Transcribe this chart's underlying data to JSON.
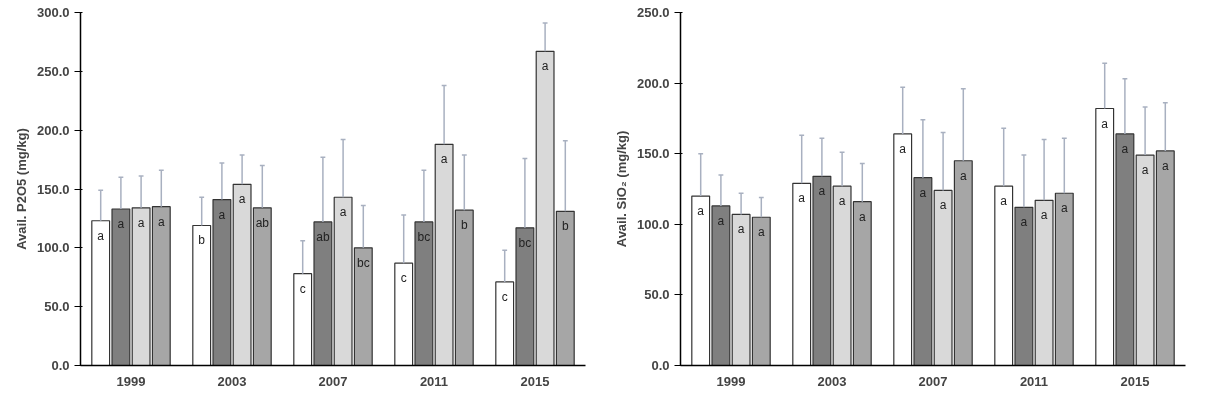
{
  "chart_data": [
    {
      "type": "bar",
      "ylabel": "Avail. P2O5 (mg/kg)",
      "categories": [
        "1999",
        "2003",
        "2007",
        "2011",
        "2015"
      ],
      "ylim": [
        0,
        300
      ],
      "yticks": [
        {
          "value": 0,
          "label": "0.0"
        },
        {
          "value": 50,
          "label": "50.0"
        },
        {
          "value": 100,
          "label": "100.0"
        },
        {
          "value": 150,
          "label": "150.0"
        },
        {
          "value": 200,
          "label": "200.0"
        },
        {
          "value": 250,
          "label": "250.0"
        },
        {
          "value": 300,
          "label": "300.0"
        }
      ],
      "grid": false,
      "series": [
        {
          "color": "#ffffff",
          "values": [
            123,
            119,
            78,
            87,
            71
          ],
          "errors": [
            [
              123,
              149
            ],
            [
              119,
              143
            ],
            [
              78,
              106
            ],
            [
              87,
              128
            ],
            [
              71,
              98
            ]
          ],
          "value_labels": [
            "a",
            "b",
            "c",
            "c",
            "c"
          ]
        },
        {
          "color": "#7f7f7f",
          "values": [
            133,
            141,
            122,
            122,
            117
          ],
          "errors": [
            [
              133,
              160
            ],
            [
              141,
              172
            ],
            [
              122,
              177
            ],
            [
              122,
              166
            ],
            [
              117,
              176
            ]
          ],
          "value_labels": [
            "a",
            "a",
            "ab",
            "bc",
            "bc"
          ]
        },
        {
          "color": "#d9d9d9",
          "values": [
            134,
            154,
            143,
            188,
            267
          ],
          "errors": [
            [
              134,
              161
            ],
            [
              154,
              179
            ],
            [
              143,
              192
            ],
            [
              188,
              238
            ],
            [
              267,
              291
            ]
          ],
          "value_labels": [
            "a",
            "a",
            "a",
            "a",
            "a"
          ]
        },
        {
          "color": "#a6a6a6",
          "values": [
            135,
            134,
            100,
            132,
            131
          ],
          "errors": [
            [
              135,
              166
            ],
            [
              134,
              170
            ],
            [
              100,
              136
            ],
            [
              132,
              179
            ],
            [
              131,
              191
            ]
          ],
          "value_labels": [
            "a",
            "ab",
            "bc",
            "b",
            "b"
          ]
        }
      ]
    },
    {
      "type": "bar",
      "ylabel": "Avail. SiO₂ (mg/kg)",
      "categories": [
        "1999",
        "2003",
        "2007",
        "2011",
        "2015"
      ],
      "ylim": [
        0,
        250
      ],
      "yticks": [
        {
          "value": 0,
          "label": "0.0"
        },
        {
          "value": 50,
          "label": "50.0"
        },
        {
          "value": 100,
          "label": "100.0"
        },
        {
          "value": 150,
          "label": "150.0"
        },
        {
          "value": 200,
          "label": "200.0"
        },
        {
          "value": 250,
          "label": "250.0"
        }
      ],
      "grid": false,
      "series": [
        {
          "color": "#ffffff",
          "values": [
            120,
            129,
            164,
            127,
            182
          ],
          "errors": [
            [
              120,
              150
            ],
            [
              129,
              163
            ],
            [
              164,
              197
            ],
            [
              127,
              168
            ],
            [
              182,
              214
            ]
          ],
          "value_labels": [
            "a",
            "a",
            "a",
            "a",
            "a"
          ]
        },
        {
          "color": "#7f7f7f",
          "values": [
            113,
            134,
            133,
            112,
            164
          ],
          "errors": [
            [
              113,
              135
            ],
            [
              134,
              161
            ],
            [
              133,
              174
            ],
            [
              112,
              149
            ],
            [
              164,
              203
            ]
          ],
          "value_labels": [
            "a",
            "a",
            "a",
            "a",
            "a"
          ]
        },
        {
          "color": "#d9d9d9",
          "values": [
            107,
            127,
            124,
            117,
            149
          ],
          "errors": [
            [
              107,
              122
            ],
            [
              127,
              151
            ],
            [
              124,
              165
            ],
            [
              117,
              160
            ],
            [
              149,
              183
            ]
          ],
          "value_labels": [
            "a",
            "a",
            "a",
            "a",
            "a"
          ]
        },
        {
          "color": "#a6a6a6",
          "values": [
            105,
            116,
            145,
            122,
            152
          ],
          "errors": [
            [
              105,
              119
            ],
            [
              116,
              143
            ],
            [
              145,
              196
            ],
            [
              122,
              161
            ],
            [
              152,
              186
            ]
          ],
          "value_labels": [
            "a",
            "a",
            "a",
            "a",
            "a"
          ]
        }
      ]
    }
  ]
}
